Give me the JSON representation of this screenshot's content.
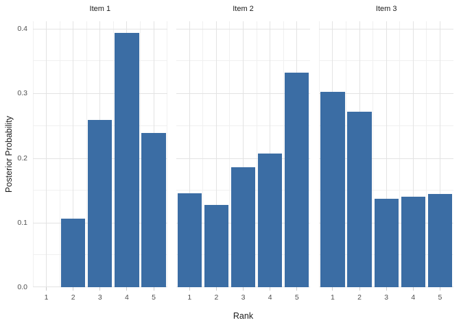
{
  "chart_data": {
    "type": "bar",
    "faceted": true,
    "title": "",
    "xlabel": "Rank",
    "ylabel": "Posterior Probability",
    "categories": [
      1,
      2,
      3,
      4,
      5
    ],
    "series": [
      {
        "name": "Item 1",
        "values": [
          0,
          0.106,
          0.259,
          0.394,
          0.239
        ]
      },
      {
        "name": "Item 2",
        "values": [
          0.145,
          0.127,
          0.186,
          0.207,
          0.332
        ]
      },
      {
        "name": "Item 3",
        "values": [
          0.303,
          0.272,
          0.137,
          0.14,
          0.144
        ]
      }
    ],
    "xlim": [
      0.5,
      5.5
    ],
    "ylim": [
      0,
      0.412
    ],
    "yticks": [
      0.0,
      0.1,
      0.2,
      0.3,
      0.4
    ],
    "ytick_labels": [
      "0.0",
      "0.1",
      "0.2",
      "0.3",
      "0.4"
    ],
    "y_minor_ticks": [
      0.05,
      0.15,
      0.25,
      0.35
    ],
    "bar_width_fraction": 0.9,
    "grid": true,
    "legend": false,
    "colors": {
      "bar": "#3b6da4",
      "grid_major": "#e3e3e3",
      "grid_minor": "#f0f0f0",
      "tick_mark": "#c9c9c9",
      "tick_text": "#4d4d4d",
      "title_text": "#1a1a1a",
      "background": "#ffffff"
    }
  }
}
